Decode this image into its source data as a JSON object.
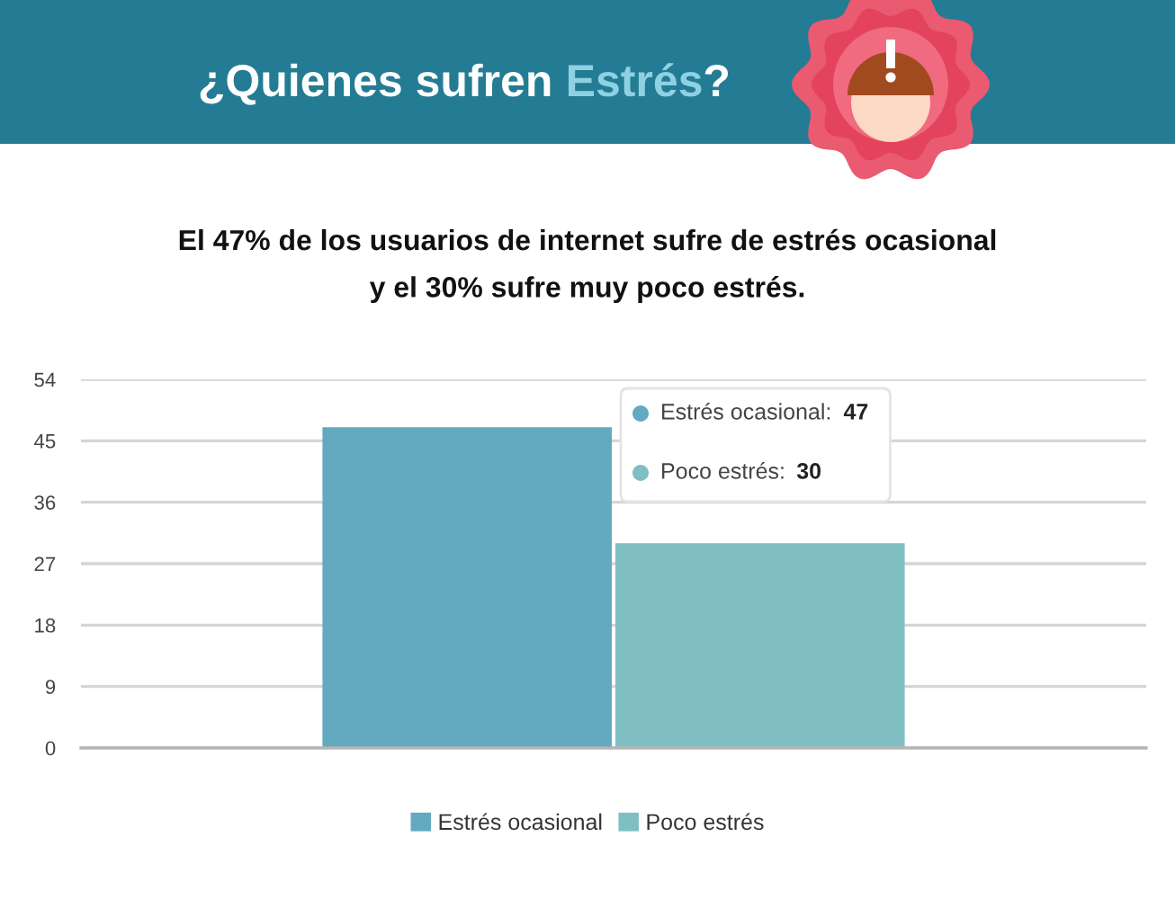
{
  "chart_data": {
    "type": "bar",
    "title": "¿Quienes sufren Estrés?",
    "subtitle": "El 47% de los usuarios de internet sufre de estrés ocasional\ny el 30% sufre muy poco estrés.",
    "categories": [
      null
    ],
    "series": [
      {
        "name": "Estrés ocasional",
        "color": "#63a9c0",
        "values": [
          47
        ]
      },
      {
        "name": "Poco estrés",
        "color": "#7fbfc4",
        "values": [
          30
        ]
      }
    ],
    "ylim": [
      0,
      54
    ],
    "yticks": [
      0,
      9,
      18,
      27,
      36,
      45,
      54
    ],
    "annotations": [
      "Estrés ocasional: 47",
      "Poco estrés: 30"
    ],
    "grid": "y",
    "legend": "bottom"
  }
}
